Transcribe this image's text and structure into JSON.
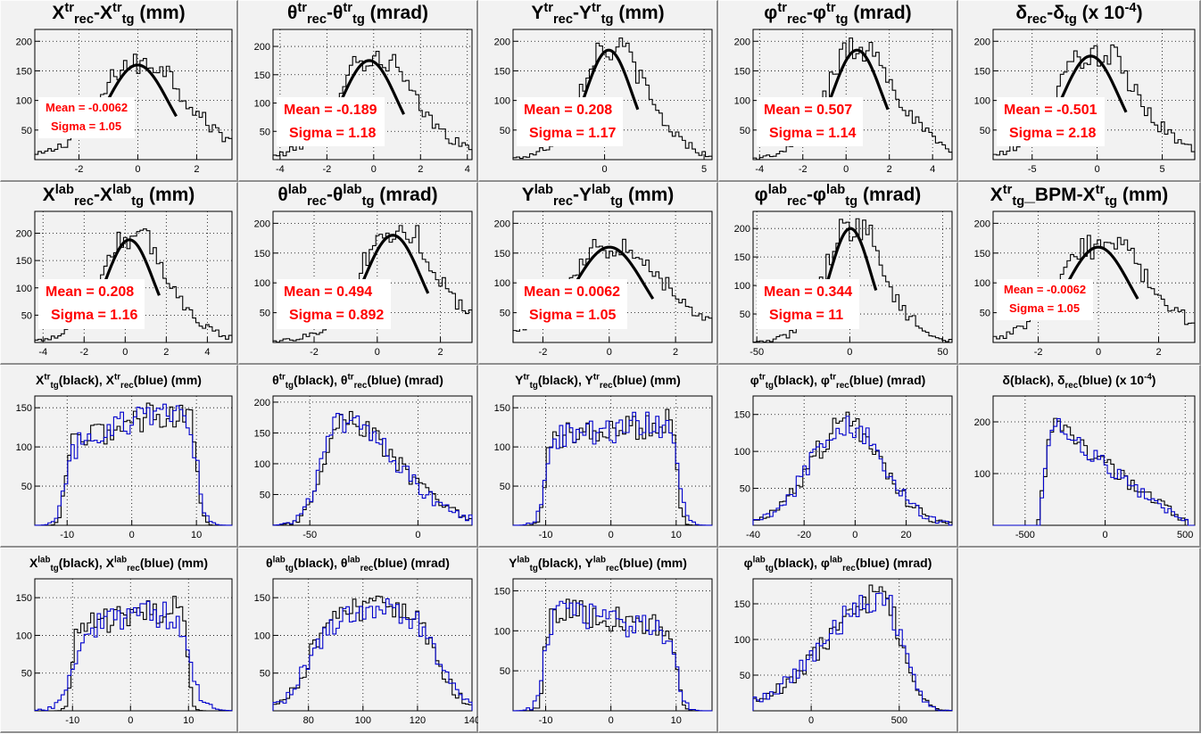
{
  "canvas": {
    "background": "#f2f2f2",
    "fit_color": "#000000",
    "rec_color": "#0000cc",
    "stat_color": "#ff0000"
  },
  "chart_data": [
    {
      "type": "bar",
      "title": "X<sup>tr</sup><sub>rec</sub>-X<sup>tr</sup><sub>tg</sub> (mm)",
      "size": "big",
      "xlim": [
        -3.5,
        3.2
      ],
      "ylim": [
        0,
        220
      ],
      "xticks": [
        -2,
        0,
        2
      ],
      "yticks": [
        50,
        100,
        150,
        200
      ],
      "stats": {
        "mean_label": "Mean = -0.0062",
        "sigma_label": "Sigma = 1.05",
        "mean": -0.0062,
        "sigma": 1.05
      },
      "series": [
        {
          "shape": "residual",
          "mu": -0.0062,
          "sigma": 1.05,
          "peak": 160,
          "xmin": -3.5,
          "xmax": 3.2,
          "nbins": 60,
          "tail": "right"
        }
      ]
    },
    {
      "type": "bar",
      "title": "&theta;<sup>tr</sup><sub>rec</sub>-&theta;<sup>tr</sup><sub>tg</sub> (mrad)",
      "size": "big",
      "xlim": [
        -4.3,
        4.2
      ],
      "ylim": [
        0,
        230
      ],
      "xticks": [
        -4,
        -2,
        0,
        2,
        4
      ],
      "yticks": [
        50,
        100,
        150,
        200
      ],
      "stats": {
        "mean_label": "Mean = -0.189",
        "sigma_label": "Sigma = 1.18",
        "mean": -0.189,
        "sigma": 1.18
      },
      "series": [
        {
          "shape": "residual",
          "mu": -0.189,
          "sigma": 1.18,
          "peak": 175,
          "xmin": -4.3,
          "xmax": 4.2,
          "nbins": 60,
          "tail": "right"
        }
      ]
    },
    {
      "type": "bar",
      "title": "Y<sup>tr</sup><sub>rec</sub>-Y<sup>tr</sup><sub>tg</sub> (mm)",
      "size": "big",
      "xlim": [
        -4.6,
        5.4
      ],
      "ylim": [
        0,
        220
      ],
      "xticks": [
        0,
        5
      ],
      "yticks": [
        50,
        100,
        150,
        200
      ],
      "stats": {
        "mean_label": "Mean = 0.208",
        "sigma_label": "Sigma = 1.17",
        "mean": 0.208,
        "sigma": 1.17
      },
      "series": [
        {
          "shape": "residual",
          "mu": 0.208,
          "sigma": 1.17,
          "peak": 185,
          "xmin": -4.6,
          "xmax": 5.4,
          "nbins": 60,
          "tail": "right"
        }
      ]
    },
    {
      "type": "bar",
      "title": "&phi;<sup>tr</sup><sub>rec</sub>-&phi;<sup>tr</sup><sub>tg</sub> (mrad)",
      "size": "big",
      "xlim": [
        -4.3,
        4.9
      ],
      "ylim": [
        0,
        220
      ],
      "xticks": [
        -4,
        -2,
        0,
        2,
        4
      ],
      "yticks": [
        50,
        100,
        150,
        200
      ],
      "stats": {
        "mean_label": "Mean = 0.507",
        "sigma_label": "Sigma = 1.14",
        "mean": 0.507,
        "sigma": 1.14
      },
      "series": [
        {
          "shape": "residual",
          "mu": 0.507,
          "sigma": 1.14,
          "peak": 185,
          "xmin": -4.3,
          "xmax": 4.9,
          "nbins": 60,
          "tail": "right"
        }
      ]
    },
    {
      "type": "bar",
      "title": "&delta;<sub>rec</sub>-&delta;<sub>tg</sub> (x 10<sup>-4</sup>)",
      "size": "big",
      "xlim": [
        -8,
        7.5
      ],
      "ylim": [
        0,
        220
      ],
      "xticks": [
        -5,
        0,
        5
      ],
      "yticks": [
        50,
        100,
        150,
        200
      ],
      "stats": {
        "mean_label": "Mean = -0.501",
        "sigma_label": "Sigma = 2.18",
        "mean": -0.501,
        "sigma": 2.18
      },
      "series": [
        {
          "shape": "residual",
          "mu": -0.501,
          "sigma": 2.18,
          "peak": 175,
          "xmin": -8,
          "xmax": 7.5,
          "nbins": 60,
          "tail": "right"
        }
      ]
    },
    {
      "type": "bar",
      "title": "X<sup>lab</sup><sub>rec</sub>-X<sup>lab</sup><sub>tg</sub> (mm)",
      "size": "big",
      "xlim": [
        -4.4,
        5.2
      ],
      "ylim": [
        0,
        240
      ],
      "xticks": [
        -4,
        -2,
        0,
        2,
        4
      ],
      "yticks": [
        50,
        100,
        150,
        200
      ],
      "stats": {
        "mean_label": "Mean = 0.208",
        "sigma_label": "Sigma = 1.16",
        "mean": 0.208,
        "sigma": 1.16
      },
      "series": [
        {
          "shape": "residual",
          "mu": 0.208,
          "sigma": 1.16,
          "peak": 188,
          "xmin": -4.4,
          "xmax": 5.2,
          "nbins": 60,
          "tail": "right"
        }
      ]
    },
    {
      "type": "bar",
      "title": "&theta;<sup>lab</sup><sub>rec</sub>-&theta;<sup>lab</sup><sub>tg</sub> (mrad)",
      "size": "big",
      "xlim": [
        -3.3,
        3.0
      ],
      "ylim": [
        0,
        220
      ],
      "xticks": [
        -2,
        0,
        2
      ],
      "yticks": [
        50,
        100,
        150,
        200
      ],
      "stats": {
        "mean_label": "Mean = 0.494",
        "sigma_label": "Sigma = 0.892",
        "mean": 0.494,
        "sigma": 0.892
      },
      "series": [
        {
          "shape": "residual",
          "mu": 0.494,
          "sigma": 0.892,
          "peak": 180,
          "xmin": -3.3,
          "xmax": 3.0,
          "nbins": 60,
          "tail": "right"
        }
      ]
    },
    {
      "type": "bar",
      "title": "Y<sup>lab</sup><sub>rec</sub>-Y<sup>lab</sup><sub>tg</sub> (mm)",
      "size": "big",
      "xlim": [
        -2.9,
        3.1
      ],
      "ylim": [
        0,
        220
      ],
      "xticks": [
        -2,
        0,
        2
      ],
      "yticks": [
        50,
        100,
        150,
        200
      ],
      "stats": {
        "mean_label": "Mean = 0.0062",
        "sigma_label": "Sigma = 1.05",
        "mean": 0.0062,
        "sigma": 1.05
      },
      "series": [
        {
          "shape": "residual",
          "mu": 0.0062,
          "sigma": 1.05,
          "peak": 160,
          "xmin": -2.9,
          "xmax": 3.1,
          "nbins": 60,
          "tail": "right"
        }
      ]
    },
    {
      "type": "bar",
      "title": "&phi;<sup>lab</sup><sub>rec</sub>-&phi;<sup>lab</sup><sub>tg</sub> (mrad)",
      "size": "big",
      "xlim": [
        -52,
        55
      ],
      "ylim": [
        0,
        230
      ],
      "xticks": [
        -50,
        0,
        50
      ],
      "yticks": [
        50,
        100,
        150,
        200
      ],
      "stats": {
        "mean_label": "Mean = 0.344",
        "sigma_label": "Sigma = 11",
        "mean": 0.344,
        "sigma": 11
      },
      "series": [
        {
          "shape": "residual",
          "mu": 0.344,
          "sigma": 11,
          "peak": 200,
          "xmin": -52,
          "xmax": 55,
          "nbins": 60,
          "tail": "right"
        }
      ]
    },
    {
      "type": "bar",
      "title": "X<sup>tr</sup><sub>tg</sub>_BPM-X<sup>tr</sup><sub>tg</sub> (mm)",
      "size": "big",
      "xlim": [
        -3.5,
        3.2
      ],
      "ylim": [
        0,
        220
      ],
      "xticks": [
        -2,
        0,
        2
      ],
      "yticks": [
        50,
        100,
        150,
        200
      ],
      "stats": {
        "mean_label": "Mean = -0.0062",
        "sigma_label": "Sigma = 1.05",
        "mean": -0.0062,
        "sigma": 1.05
      },
      "series": [
        {
          "shape": "residual",
          "mu": -0.0062,
          "sigma": 1.05,
          "peak": 160,
          "xmin": -3.5,
          "xmax": 3.2,
          "nbins": 60,
          "tail": "right"
        }
      ]
    },
    {
      "type": "bar",
      "title": "X<sup>tr</sup><sub>tg</sub>(black), X<sup>tr</sup><sub>rec</sub>(blue) (mm)",
      "size": "small",
      "xlim": [
        -15,
        15.5
      ],
      "ylim": [
        0,
        165
      ],
      "xticks": [
        -10,
        0,
        10
      ],
      "yticks": [
        50,
        100,
        150
      ],
      "series": [
        {
          "name": "black",
          "shape": "flat",
          "lo": -10.4,
          "hi": 10.2,
          "base": 100,
          "slope": 3,
          "top": 140,
          "edge": 0.35,
          "xmin": -15,
          "xmax": 15.5,
          "nbins": 60
        },
        {
          "name": "blue",
          "shape": "flat",
          "lo": -10.4,
          "hi": 10.2,
          "base": 100,
          "slope": 3,
          "top": 138,
          "edge": 0.6,
          "xmin": -15,
          "xmax": 15.5,
          "nbins": 60
        }
      ]
    },
    {
      "type": "bar",
      "title": "&theta;<sup>tr</sup><sub>tg</sub>(black), &theta;<sup>tr</sup><sub>rec</sub>(blue) (mrad)",
      "size": "small",
      "xlim": [
        -67,
        25
      ],
      "ylim": [
        0,
        210
      ],
      "xticks": [
        -50,
        0
      ],
      "yticks": [
        50,
        100,
        150,
        200
      ],
      "series": [
        {
          "name": "black",
          "shape": "skew",
          "mode": -36,
          "left": 8,
          "right": 26,
          "peak": 172,
          "xmin": -67,
          "xmax": 25,
          "nbins": 60
        },
        {
          "name": "blue",
          "shape": "skew",
          "mode": -36,
          "left": 8.5,
          "right": 26,
          "peak": 168,
          "xmin": -67,
          "xmax": 25,
          "nbins": 60
        }
      ]
    },
    {
      "type": "bar",
      "title": "Y<sup>tr</sup><sub>tg</sub>(black), Y<sup>tr</sup><sub>rec</sub>(blue) (mm)",
      "size": "small",
      "xlim": [
        -15,
        15.5
      ],
      "ylim": [
        0,
        165
      ],
      "xticks": [
        -10,
        0,
        10
      ],
      "yticks": [
        50,
        100,
        150
      ],
      "series": [
        {
          "name": "black",
          "shape": "flat",
          "lo": -10.2,
          "hi": 10.2,
          "base": 110,
          "slope": 1.2,
          "top": 140,
          "edge": 0.35,
          "xmin": -15,
          "xmax": 15.5,
          "nbins": 60
        },
        {
          "name": "blue",
          "shape": "flat",
          "lo": -10.2,
          "hi": 10.2,
          "base": 110,
          "slope": 1.2,
          "top": 138,
          "edge": 0.6,
          "xmin": -15,
          "xmax": 15.5,
          "nbins": 60
        }
      ]
    },
    {
      "type": "bar",
      "title": "&phi;<sup>tr</sup><sub>tg</sub>(black), &phi;<sup>tr</sup><sub>rec</sub>(blue) (mrad)",
      "size": "small",
      "xlim": [
        -40,
        38
      ],
      "ylim": [
        0,
        175
      ],
      "xticks": [
        -40,
        -20,
        0,
        20
      ],
      "yticks": [
        50,
        100,
        150
      ],
      "series": [
        {
          "name": "black",
          "shape": "gauss",
          "mu": -3,
          "sigma": 14,
          "peak": 140,
          "xmin": -40,
          "xmax": 38,
          "nbins": 60
        },
        {
          "name": "blue",
          "shape": "gauss",
          "mu": -3,
          "sigma": 14.3,
          "peak": 138,
          "xmin": -40,
          "xmax": 38,
          "nbins": 60
        }
      ]
    },
    {
      "type": "bar",
      "title": "&delta;(black), &delta;<sub>rec</sub>(blue) (x 10<sup>-4</sup>)",
      "size": "small",
      "xlim": [
        -700,
        560
      ],
      "ylim": [
        0,
        250
      ],
      "xticks": [
        -500,
        0,
        500
      ],
      "yticks": [
        100,
        200
      ],
      "series": [
        {
          "name": "black",
          "shape": "delta",
          "lo": -420,
          "mode": -330,
          "hi": 520,
          "peak": 205,
          "end": 5,
          "xmin": -700,
          "xmax": 560,
          "nbins": 60
        },
        {
          "name": "blue",
          "shape": "delta",
          "lo": -415,
          "mode": -330,
          "hi": 525,
          "peak": 200,
          "end": 5,
          "xmin": -700,
          "xmax": 560,
          "nbins": 60
        }
      ]
    },
    {
      "type": "bar",
      "title": "X<sup>lab</sup><sub>tg</sub>(black), X<sup>lab</sup><sub>rec</sub>(blue) (mm)",
      "size": "small",
      "xlim": [
        -16.5,
        17.5
      ],
      "ylim": [
        0,
        175
      ],
      "xticks": [
        -10,
        0,
        10
      ],
      "yticks": [
        50,
        100,
        150
      ],
      "series": [
        {
          "name": "black",
          "shape": "flat",
          "lo": -10.2,
          "hi": 10.0,
          "base": 110,
          "slope": 1.5,
          "top": 142,
          "edge": 0.35,
          "xmin": -16.5,
          "xmax": 17.5,
          "nbins": 60
        },
        {
          "name": "blue",
          "shape": "flat",
          "lo": -10.2,
          "hi": 10.0,
          "base": 108,
          "slope": 1.5,
          "top": 140,
          "edge": 1.2,
          "xmin": -16.5,
          "xmax": 17.5,
          "nbins": 60
        }
      ]
    },
    {
      "type": "bar",
      "title": "&theta;<sup>lab</sup><sub>tg</sub>(black), &theta;<sup>lab</sup><sub>rec</sub>(blue) (mrad)",
      "size": "small",
      "xlim": [
        67,
        140
      ],
      "ylim": [
        0,
        175
      ],
      "xticks": [
        80,
        100,
        120,
        140
      ],
      "yticks": [
        50,
        100,
        150
      ],
      "series": [
        {
          "name": "black",
          "shape": "plateau",
          "lo": 80,
          "hi": 128,
          "top": 135,
          "width": 4,
          "xmin": 67,
          "xmax": 140,
          "nbins": 60
        },
        {
          "name": "blue",
          "shape": "plateau",
          "lo": 80,
          "hi": 128,
          "top": 133,
          "width": 4.5,
          "xmin": 67,
          "xmax": 140,
          "nbins": 60
        }
      ]
    },
    {
      "type": "bar",
      "title": "Y<sup>lab</sup><sub>tg</sub>(black), Y<sup>lab</sup><sub>rec</sub>(blue) (mm)",
      "size": "small",
      "xlim": [
        -15,
        15.5
      ],
      "ylim": [
        0,
        165
      ],
      "xticks": [
        -10,
        0,
        10
      ],
      "yticks": [
        50,
        100,
        150
      ],
      "series": [
        {
          "name": "black",
          "shape": "flat",
          "lo": -10.2,
          "hi": 10.2,
          "base": 130,
          "slope": -1.5,
          "top": 140,
          "edge": 0.35,
          "xmin": -15,
          "xmax": 15.5,
          "nbins": 60
        },
        {
          "name": "blue",
          "shape": "flat",
          "lo": -10.2,
          "hi": 10.2,
          "base": 128,
          "slope": -1.5,
          "top": 138,
          "edge": 0.6,
          "xmin": -15,
          "xmax": 15.5,
          "nbins": 60
        }
      ]
    },
    {
      "type": "bar",
      "title": "&phi;<sup>lab</sup><sub>tg</sub>(black), &phi;<sup>lab</sup><sub>rec</sub>(blue) (mrad)",
      "size": "small",
      "xlim": [
        -330,
        800
      ],
      "ylim": [
        0,
        185
      ],
      "xticks": [
        0,
        500
      ],
      "yticks": [
        50,
        100,
        150
      ],
      "series": [
        {
          "name": "black",
          "shape": "skewl",
          "mode": 400,
          "left": 320,
          "right": 110,
          "peak": 162,
          "xmin": -330,
          "xmax": 800,
          "nbins": 60
        },
        {
          "name": "blue",
          "shape": "skewl",
          "mode": 400,
          "left": 330,
          "right": 115,
          "peak": 158,
          "xmin": -330,
          "xmax": 800,
          "nbins": 60
        }
      ]
    }
  ]
}
